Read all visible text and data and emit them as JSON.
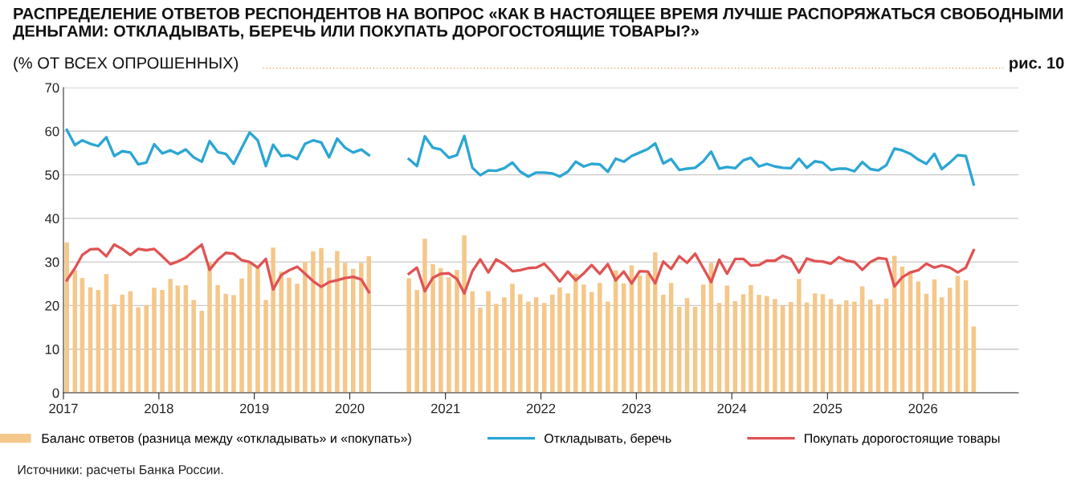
{
  "chart_data": {
    "type": "bar",
    "title": "РАСПРЕДЕЛЕНИЕ ОТВЕТОВ РЕСПОНДЕНТОВ НА ВОПРОС «КАК В НАСТОЯЩЕЕ ВРЕМЯ ЛУЧШЕ РАСПОРЯЖАТЬСЯ СВОБОДНЫМИ ДЕНЬГАМИ: ОТКЛАДЫВАТЬ, БЕРЕЧЬ ИЛИ ПОКУПАТЬ ДОРОГОСТОЯЩИЕ ТОВАРЫ?»",
    "subtitle": "(% ОТ ВСЕХ ОПРОШЕННЫХ)",
    "annotations": [
      "рис. 10",
      "Источники: расчеты Банка России."
    ],
    "x": [
      "2017-01",
      "2017-02",
      "2017-03",
      "2017-04",
      "2017-05",
      "2017-06",
      "2017-07",
      "2017-08",
      "2017-09",
      "2017-10",
      "2017-11",
      "2017-12",
      "2018-01",
      "2018-02",
      "2018-03",
      "2018-04",
      "2018-05",
      "2018-06",
      "2018-07",
      "2018-08",
      "2018-09",
      "2018-10",
      "2018-11",
      "2018-12",
      "2019-01",
      "2019-02",
      "2019-03",
      "2019-04",
      "2019-05",
      "2019-06",
      "2019-07",
      "2019-08",
      "2019-09",
      "2019-10",
      "2019-11",
      "2019-12",
      "2020-01",
      "2020-02",
      "2020-03",
      "2020-04",
      "2020-05",
      "2020-06",
      "2020-07",
      "2020-08",
      "2020-09",
      "2020-10",
      "2020-11",
      "2020-12",
      "2021-01",
      "2021-02",
      "2021-03",
      "2021-04",
      "2021-05",
      "2021-06",
      "2021-07",
      "2021-08",
      "2021-09",
      "2021-10",
      "2021-11",
      "2021-12",
      "2022-01",
      "2022-02",
      "2022-03",
      "2022-04",
      "2022-05",
      "2022-06",
      "2022-07",
      "2022-08",
      "2022-09",
      "2022-10",
      "2022-11",
      "2022-12",
      "2023-01",
      "2023-02",
      "2023-03",
      "2023-04",
      "2023-05",
      "2023-06",
      "2023-07",
      "2023-08",
      "2023-09",
      "2023-10",
      "2023-11",
      "2023-12",
      "2024-01",
      "2024-02",
      "2024-03",
      "2024-04",
      "2024-05",
      "2024-06",
      "2024-07",
      "2024-08",
      "2024-09",
      "2024-10",
      "2024-11",
      "2024-12",
      "2025-01",
      "2025-02",
      "2025-03",
      "2025-04",
      "2025-05",
      "2025-06",
      "2025-07",
      "2025-08",
      "2025-09",
      "2025-10",
      "2025-11",
      "2025-12",
      "2026-01",
      "2026-02",
      "2026-03",
      "2026-04",
      "2026-05",
      "2026-06",
      "2026-07"
    ],
    "series": [
      {
        "name": "Баланс ответов (разница между «откладывать» и «покупать»)",
        "color": "#f4c78a",
        "values": [
          34.5,
          28.1,
          26.3,
          24.2,
          23.6,
          27.2,
          20.3,
          22.5,
          23.3,
          19.6,
          20.1,
          24.1,
          23.6,
          26.1,
          24.6,
          24.7,
          21.3,
          18.8,
          29.9,
          24.7,
          22.7,
          22.4,
          26.2,
          29.8,
          28.6,
          21.3,
          33.3,
          27.8,
          26.4,
          25.0,
          30.0,
          32.4,
          33.2,
          28.7,
          32.5,
          29.8,
          28.4,
          29.8,
          31.3,
          null,
          null,
          null,
          null,
          26.3,
          23.6,
          35.3,
          29.5,
          28.6,
          26.5,
          28.2,
          36.1,
          23.3,
          19.5,
          23.3,
          20.4,
          21.9,
          25.0,
          22.6,
          20.9,
          21.9,
          20.6,
          22.5,
          24.2,
          22.8,
          27.3,
          24.8,
          23.1,
          25.2,
          20.9,
          28.1,
          25.1,
          29.2,
          26.9,
          27.3,
          32.2,
          22.5,
          25.2,
          19.7,
          21.7,
          19.7,
          24.8,
          29.8,
          20.6,
          24.6,
          21.0,
          22.6,
          24.7,
          22.5,
          22.2,
          21.5,
          20.0,
          20.8,
          26.1,
          20.7,
          22.8,
          22.6,
          21.5,
          20.3,
          21.2,
          20.9,
          24.4,
          21.4,
          20.3,
          21.6,
          31.4,
          28.9,
          27.9,
          25.5,
          22.7,
          26.0,
          21.9,
          24.1,
          26.8,
          25.8,
          15.2
        ]
      },
      {
        "name": "Откладывать, беречь",
        "type": "line",
        "color": "#2ba6d3",
        "values": [
          60.3,
          56.8,
          57.9,
          57.1,
          56.6,
          58.6,
          54.3,
          55.4,
          55.1,
          52.4,
          52.8,
          57.0,
          54.9,
          55.6,
          54.8,
          55.8,
          54.0,
          53.0,
          57.7,
          55.2,
          54.8,
          52.5,
          56.2,
          59.7,
          57.9,
          52.0,
          56.9,
          54.3,
          54.5,
          53.6,
          57.1,
          57.9,
          57.4,
          54.0,
          58.3,
          56.2,
          55.1,
          55.8,
          54.5,
          null,
          null,
          null,
          null,
          53.6,
          52.0,
          58.8,
          56.2,
          55.8,
          53.9,
          54.5,
          58.9,
          51.6,
          49.9,
          51.0,
          50.9,
          51.5,
          52.8,
          50.7,
          49.6,
          50.5,
          50.5,
          50.3,
          49.6,
          50.7,
          53.0,
          51.9,
          52.5,
          52.4,
          50.7,
          53.7,
          53.0,
          54.3,
          55.1,
          55.9,
          57.2,
          52.6,
          53.6,
          51.1,
          51.4,
          51.6,
          53.1,
          55.3,
          51.4,
          51.8,
          51.5,
          53.3,
          53.9,
          51.9,
          52.5,
          51.9,
          51.6,
          51.5,
          53.7,
          51.6,
          53.1,
          52.8,
          51.1,
          51.4,
          51.4,
          50.8,
          52.9,
          51.3,
          51.0,
          52.2,
          56.0,
          55.6,
          54.8,
          53.5,
          52.5,
          54.8,
          51.3,
          52.8,
          54.5,
          54.3,
          47.8
        ]
      },
      {
        "name": "Покупать дорогостоящие товары",
        "type": "line",
        "color": "#e05353",
        "values": [
          25.8,
          28.6,
          31.6,
          32.9,
          33.0,
          31.3,
          34.0,
          33.0,
          31.6,
          33.0,
          32.7,
          33.0,
          31.3,
          29.5,
          30.1,
          31.0,
          32.5,
          34.0,
          28.2,
          30.5,
          32.1,
          31.9,
          30.4,
          30.0,
          28.7,
          30.7,
          23.7,
          27.0,
          28.1,
          28.9,
          27.3,
          25.6,
          24.3,
          25.4,
          25.8,
          26.3,
          26.6,
          26.0,
          23.1,
          null,
          null,
          null,
          null,
          27.3,
          28.7,
          23.3,
          26.4,
          27.3,
          27.4,
          26.1,
          22.8,
          27.9,
          30.6,
          27.6,
          30.6,
          29.5,
          27.9,
          28.1,
          28.6,
          28.7,
          29.6,
          27.6,
          25.5,
          27.8,
          25.8,
          27.4,
          29.3,
          27.3,
          29.5,
          25.8,
          27.8,
          25.1,
          27.9,
          27.8,
          25.1,
          30.1,
          28.4,
          31.3,
          29.8,
          31.9,
          28.6,
          25.4,
          30.5,
          27.3,
          30.7,
          30.7,
          29.2,
          29.3,
          30.3,
          30.3,
          31.4,
          30.7,
          27.6,
          30.8,
          30.2,
          30.1,
          29.6,
          31.1,
          30.3,
          30.0,
          28.2,
          30.0,
          30.9,
          30.7,
          24.4,
          26.5,
          27.6,
          28.1,
          29.6,
          28.7,
          29.2,
          28.7,
          27.6,
          28.7,
          32.7
        ]
      }
    ],
    "xlim": [
      "2017",
      "2027"
    ],
    "xticks": [
      "2017",
      "2018",
      "2019",
      "2020",
      "2021",
      "2022",
      "2023",
      "2024",
      "2025",
      "2026"
    ],
    "ylim": [
      0,
      70
    ],
    "yticks": [
      0,
      10,
      20,
      30,
      40,
      50,
      60,
      70
    ],
    "grid": "y",
    "legend": "bottom",
    "marker": "none",
    "line_style": "solid"
  }
}
